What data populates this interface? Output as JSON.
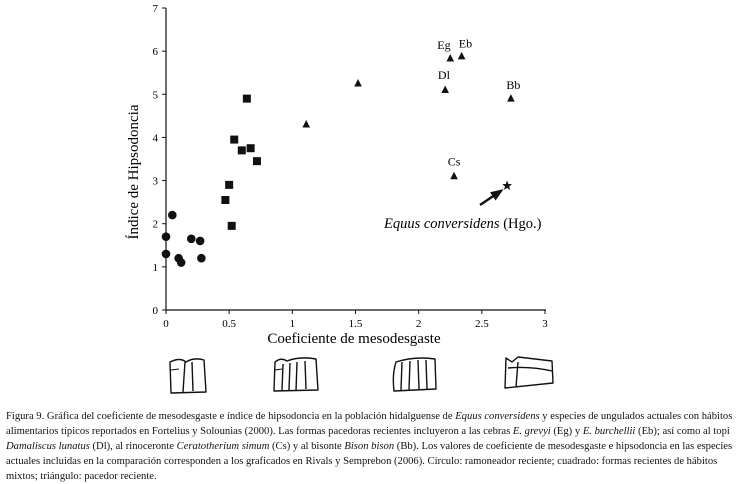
{
  "chart_data": {
    "type": "scatter",
    "xlabel": "Coeficiente de mesodesgaste",
    "ylabel": "Índice de Hipsodoncia",
    "xlim": [
      0,
      3
    ],
    "ylim": [
      0,
      7
    ],
    "x_ticks": [
      "0",
      "0.5",
      "1",
      "1.5",
      "2",
      "2.5",
      "3"
    ],
    "y_ticks": [
      "0",
      "1",
      "2",
      "3",
      "4",
      "5",
      "6",
      "7"
    ],
    "series": [
      {
        "name": "ramoneador reciente",
        "marker": "circle",
        "points": [
          [
            0.0,
            1.7
          ],
          [
            0.0,
            1.3
          ],
          [
            0.05,
            2.2
          ],
          [
            0.1,
            1.2
          ],
          [
            0.12,
            1.1
          ],
          [
            0.2,
            1.65
          ],
          [
            0.27,
            1.6
          ],
          [
            0.28,
            1.2
          ]
        ]
      },
      {
        "name": "formas recientes de hábitos mixtos",
        "marker": "square",
        "points": [
          [
            0.47,
            2.55
          ],
          [
            0.5,
            2.9
          ],
          [
            0.52,
            1.95
          ],
          [
            0.54,
            3.95
          ],
          [
            0.6,
            3.7
          ],
          [
            0.64,
            4.9
          ],
          [
            0.67,
            3.75
          ],
          [
            0.72,
            3.45
          ]
        ]
      },
      {
        "name": "pacedor reciente",
        "marker": "triangle",
        "points": [
          [
            1.11,
            4.3
          ],
          [
            1.52,
            5.25
          ],
          [
            2.21,
            5.1
          ],
          [
            2.25,
            5.83
          ],
          [
            2.28,
            3.1
          ],
          [
            2.34,
            5.88
          ],
          [
            2.73,
            4.9
          ]
        ]
      }
    ],
    "labels": [
      {
        "text": "Eg",
        "x": 2.2,
        "y": 6.05
      },
      {
        "text": "Eb",
        "x": 2.37,
        "y": 6.08
      },
      {
        "text": "Dl",
        "x": 2.2,
        "y": 5.35
      },
      {
        "text": "Bb",
        "x": 2.75,
        "y": 5.12
      },
      {
        "text": "Cs",
        "x": 2.28,
        "y": 3.35
      }
    ],
    "star": {
      "x": 2.7,
      "y": 2.88
    },
    "annotation": {
      "species": "Equus conversidens",
      "suffix": " (Hgo.)"
    }
  },
  "caption": {
    "figure_label": "Figura 9.",
    "segments": [
      {
        "t": " Gráfica del coeficiente de mesodesgaste e índice de hipsodoncia en la población hidalguense de ",
        "i": false
      },
      {
        "t": "Equus conversidens",
        "i": true
      },
      {
        "t": " y especies de ungulados actuales con hábitos alimentarios típicos reportados en Fortelius y Solounias (2000). Las formas pacedoras recientes incluyeron a las cebras ",
        "i": false
      },
      {
        "t": "E. grevyi",
        "i": true
      },
      {
        "t": " (Eg) y ",
        "i": false
      },
      {
        "t": "E. burchellii",
        "i": true
      },
      {
        "t": " (Eb); así como al topi ",
        "i": false
      },
      {
        "t": "Damaliscus lunatus",
        "i": true
      },
      {
        "t": " (Dl), al rinoceronte ",
        "i": false
      },
      {
        "t": "Ceratotherium simum",
        "i": true
      },
      {
        "t": " (Cs) y al bisonte ",
        "i": false
      },
      {
        "t": "Bison bison",
        "i": true
      },
      {
        "t": " (Bb). Los valores de coeficiente de mesodesgaste e hipsodoncia en las especies actuales incluidas en la comparación corresponden a los graficados en  Rivals y Semprebon (2006). Círculo: ramoneador reciente; cuadrado: formas recientes de hábitos mixtos; triángulo: pacedor reciente.",
        "i": false
      }
    ]
  }
}
